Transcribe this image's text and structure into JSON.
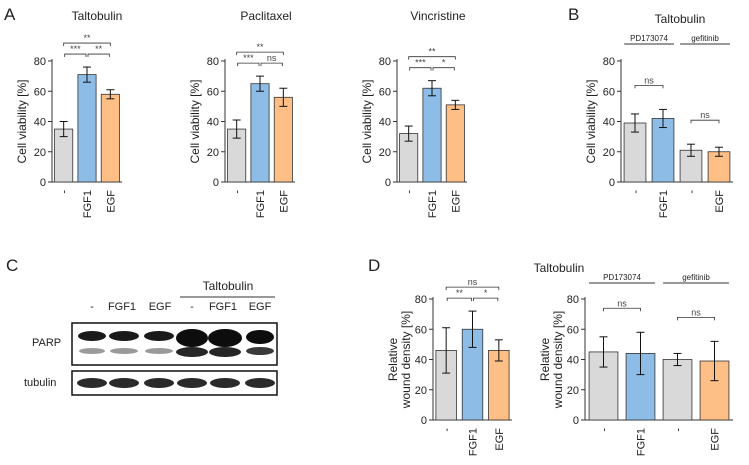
{
  "panel_letters": [
    "A",
    "B",
    "C",
    "D"
  ],
  "colors": {
    "control": "#d9d9d9",
    "fgf1": "#8dbde6",
    "egf": "#fdbf86",
    "stroke": "#333333"
  },
  "western_blot": {
    "column_labels": [
      "-",
      "FGF1",
      "EGF",
      "-",
      "FGF1",
      "EGF"
    ],
    "group_label": "Taltobulin",
    "row_labels": [
      "PARP",
      "tubulin"
    ]
  },
  "d_title": "Taltobulin",
  "chart_data": [
    {
      "id": "A1",
      "type": "bar",
      "title": "Taltobulin",
      "categories": [
        "-",
        "FGF1",
        "EGF"
      ],
      "values": [
        35,
        71,
        58
      ],
      "errors": [
        5,
        5,
        3
      ],
      "colors": [
        "control",
        "fgf1",
        "egf"
      ],
      "ylabel": "Cell viability [%]",
      "ylim": [
        0,
        80
      ],
      "yticks": [
        0,
        20,
        40,
        60,
        80
      ],
      "significance": [
        {
          "from": 0,
          "to": 1,
          "label": "***",
          "tier": 0
        },
        {
          "from": 1,
          "to": 2,
          "label": "**",
          "tier": 0
        },
        {
          "from": 0,
          "to": 2,
          "label": "**",
          "tier": 1
        }
      ]
    },
    {
      "id": "A2",
      "type": "bar",
      "title": "Paclitaxel",
      "categories": [
        "-",
        "FGF1",
        "EGF"
      ],
      "values": [
        35,
        65,
        56
      ],
      "errors": [
        6,
        5,
        6
      ],
      "colors": [
        "control",
        "fgf1",
        "egf"
      ],
      "ylabel": "Cell viability [%]",
      "ylim": [
        0,
        80
      ],
      "yticks": [
        0,
        20,
        40,
        60,
        80
      ],
      "significance": [
        {
          "from": 0,
          "to": 1,
          "label": "***",
          "tier": 0
        },
        {
          "from": 1,
          "to": 2,
          "label": "ns",
          "tier": 0
        },
        {
          "from": 0,
          "to": 2,
          "label": "**",
          "tier": 1
        }
      ]
    },
    {
      "id": "A3",
      "type": "bar",
      "title": "Vincristine",
      "categories": [
        "-",
        "FGF1",
        "EGF"
      ],
      "values": [
        32,
        62,
        51
      ],
      "errors": [
        5,
        5,
        3
      ],
      "colors": [
        "control",
        "fgf1",
        "egf"
      ],
      "ylabel": "Cell viability [%]",
      "ylim": [
        0,
        80
      ],
      "yticks": [
        0,
        20,
        40,
        60,
        80
      ],
      "significance": [
        {
          "from": 0,
          "to": 1,
          "label": "***",
          "tier": 0
        },
        {
          "from": 1,
          "to": 2,
          "label": "*",
          "tier": 0
        },
        {
          "from": 0,
          "to": 2,
          "label": "**",
          "tier": 1
        }
      ]
    },
    {
      "id": "B",
      "type": "bar",
      "title": "Taltobulin",
      "categories": [
        "-",
        "FGF1",
        "-",
        "EGF"
      ],
      "values": [
        39,
        42,
        21,
        20
      ],
      "errors": [
        6,
        6,
        4,
        3
      ],
      "colors": [
        "control",
        "fgf1",
        "control",
        "egf"
      ],
      "ylabel": "Cell viability [%]",
      "ylim": [
        0,
        80
      ],
      "yticks": [
        0,
        20,
        40,
        60,
        80
      ],
      "groups": [
        {
          "label": "PD173074",
          "from": 0,
          "to": 1
        },
        {
          "label": "gefitinib",
          "from": 2,
          "to": 3
        }
      ],
      "significance": [
        {
          "from": 0,
          "to": 1,
          "label": "ns",
          "tier": 0
        },
        {
          "from": 2,
          "to": 3,
          "label": "ns",
          "tier": 0
        }
      ]
    },
    {
      "id": "D1",
      "type": "bar",
      "title": "",
      "categories": [
        "-",
        "FGF1",
        "EGF"
      ],
      "values": [
        46,
        60,
        46
      ],
      "errors": [
        15,
        12,
        7
      ],
      "colors": [
        "control",
        "fgf1",
        "egf"
      ],
      "ylabel_lines": [
        "Relative",
        "wound density [%]"
      ],
      "ylim": [
        0,
        80
      ],
      "yticks": [
        0,
        20,
        40,
        60,
        80
      ],
      "significance": [
        {
          "from": 0,
          "to": 1,
          "label": "**",
          "tier": 0
        },
        {
          "from": 1,
          "to": 2,
          "label": "*",
          "tier": 0
        },
        {
          "from": 0,
          "to": 2,
          "label": "ns",
          "tier": 1
        }
      ]
    },
    {
      "id": "D2",
      "type": "bar",
      "title": "",
      "categories": [
        "-",
        "FGF1",
        "-",
        "EGF"
      ],
      "values": [
        45,
        44,
        40,
        39
      ],
      "errors": [
        10,
        14,
        4,
        13
      ],
      "colors": [
        "control",
        "fgf1",
        "control",
        "egf"
      ],
      "ylabel_lines": [
        "Relative",
        "wound density [%]"
      ],
      "ylim": [
        0,
        80
      ],
      "yticks": [
        0,
        20,
        40,
        60,
        80
      ],
      "groups": [
        {
          "label": "PD173074",
          "from": 0,
          "to": 1
        },
        {
          "label": "gefitinib",
          "from": 2,
          "to": 3
        }
      ],
      "significance": [
        {
          "from": 0,
          "to": 1,
          "label": "ns",
          "tier": 0
        },
        {
          "from": 2,
          "to": 3,
          "label": "ns",
          "tier": 0
        }
      ]
    }
  ]
}
